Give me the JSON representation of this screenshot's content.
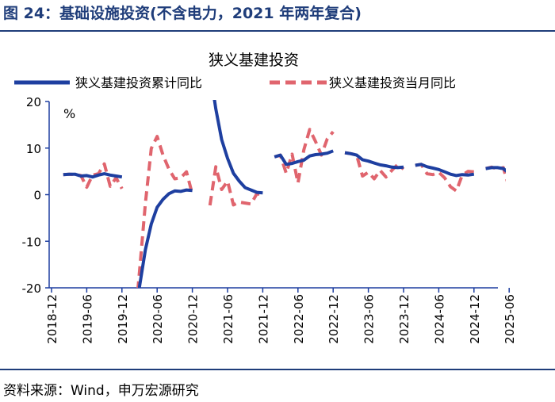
{
  "figure": {
    "title": "图 24：基础设施投资(不含电力，2021 年两年复合)",
    "source": "资料来源：Wind，申万宏源研究"
  },
  "colors": {
    "title_blue": "#1f3d7a",
    "series_cumulative": "#1e3fa0",
    "series_monthly": "#e0656e",
    "axis": "#1e3fa0"
  },
  "chart_data": {
    "type": "line",
    "title": "狭义基建投资",
    "ylabel": "%",
    "ylim": [
      -20,
      20
    ],
    "yticks": [
      -20,
      -10,
      0,
      10,
      20
    ],
    "ytick_labels": [
      "-20",
      "-10",
      "0",
      "10",
      "20"
    ],
    "xtick_labels": [
      "2018-12",
      "2019-06",
      "2019-12",
      "2020-06",
      "2020-12",
      "2021-06",
      "2021-12",
      "2022-06",
      "2022-12",
      "2023-06",
      "2023-12",
      "2024-06",
      "2024-12",
      "2025-06"
    ],
    "x_start": "2018-12",
    "x": [
      "2018-12",
      "2019-01",
      "2019-02",
      "2019-03",
      "2019-04",
      "2019-05",
      "2019-06",
      "2019-07",
      "2019-08",
      "2019-09",
      "2019-10",
      "2019-11",
      "2019-12",
      "2020-01",
      "2020-02",
      "2020-03",
      "2020-04",
      "2020-05",
      "2020-06",
      "2020-07",
      "2020-08",
      "2020-09",
      "2020-10",
      "2020-11",
      "2020-12",
      "2021-01",
      "2021-02",
      "2021-03",
      "2021-04",
      "2021-05",
      "2021-06",
      "2021-07",
      "2021-08",
      "2021-09",
      "2021-10",
      "2021-11",
      "2021-12",
      "2022-01",
      "2022-02",
      "2022-03",
      "2022-04",
      "2022-05",
      "2022-06",
      "2022-07",
      "2022-08",
      "2022-09",
      "2022-10",
      "2022-11",
      "2022-12",
      "2023-01",
      "2023-02",
      "2023-03",
      "2023-04",
      "2023-05",
      "2023-06",
      "2023-07",
      "2023-08",
      "2023-09",
      "2023-10",
      "2023-11",
      "2023-12",
      "2024-01",
      "2024-02",
      "2024-03",
      "2024-04",
      "2024-05",
      "2024-06",
      "2024-07",
      "2024-08",
      "2024-09",
      "2024-10",
      "2024-11",
      "2024-12",
      "2025-01",
      "2025-02",
      "2025-03",
      "2025-04",
      "2025-05",
      "2025-06"
    ],
    "series": [
      {
        "name": "狭义基建投资累计同比",
        "style": "solid",
        "values": [
          3.8,
          null,
          4.3,
          4.4,
          4.4,
          4.0,
          4.1,
          3.8,
          4.2,
          4.5,
          4.2,
          4.0,
          3.8,
          null,
          -30.3,
          -19.7,
          -11.8,
          -6.3,
          -2.7,
          -1.0,
          0.2,
          0.8,
          0.7,
          1.0,
          0.9,
          null,
          null,
          26.8,
          18.4,
          11.8,
          7.8,
          4.6,
          2.9,
          1.5,
          1.0,
          0.5,
          0.4,
          null,
          8.1,
          8.5,
          6.5,
          6.7,
          7.1,
          7.4,
          8.3,
          8.6,
          8.7,
          8.9,
          9.4,
          null,
          9.0,
          8.8,
          8.5,
          7.5,
          7.2,
          6.8,
          6.4,
          6.2,
          5.9,
          5.8,
          5.9,
          null,
          6.3,
          6.5,
          6.0,
          5.7,
          5.4,
          4.9,
          4.4,
          4.1,
          4.3,
          4.2,
          4.4,
          null,
          5.6,
          5.8,
          5.8,
          5.6,
          4.6
        ]
      },
      {
        "name": "狭义基建投资当月同比",
        "style": "dashed",
        "values": [
          4.7,
          null,
          4.3,
          4.4,
          4.3,
          4.1,
          1.6,
          4.2,
          4.5,
          6.6,
          1.8,
          3.6,
          1.3,
          null,
          -30.3,
          -16.4,
          -1.8,
          9.9,
          12.5,
          8.5,
          5.5,
          3.4,
          3.6,
          4.9,
          0.1,
          null,
          null,
          -2.3,
          6.0,
          1.1,
          2.9,
          -2.2,
          -1.6,
          -1.8,
          -2.0,
          0.2,
          -0.1,
          null,
          8.1,
          8.5,
          4.6,
          8.7,
          2.5,
          9.6,
          14.0,
          11.4,
          8.5,
          12.0,
          13.5,
          null,
          9.0,
          8.8,
          8.5,
          4.0,
          4.8,
          3.4,
          5.2,
          3.8,
          5.2,
          6.5,
          5.5,
          null,
          6.3,
          6.5,
          4.5,
          4.3,
          4.8,
          3.6,
          1.7,
          0.8,
          4.2,
          5.0,
          4.9,
          null,
          5.6,
          5.9,
          5.5,
          5.8,
          1.5
        ]
      }
    ]
  }
}
